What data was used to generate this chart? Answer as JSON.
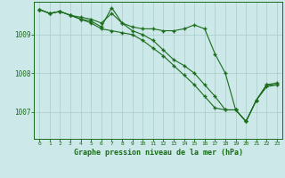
{
  "xlabel": "Graphe pression niveau de la mer (hPa)",
  "bg_color": "#cce8e8",
  "line_color": "#1a6b1a",
  "grid_color": "#aacccc",
  "axis_color": "#1a6b1a",
  "text_color": "#1a6b1a",
  "ylim": [
    1006.3,
    1009.85
  ],
  "xlim": [
    -0.5,
    23.5
  ],
  "yticks": [
    1007,
    1008,
    1009
  ],
  "xticks": [
    0,
    1,
    2,
    3,
    4,
    5,
    6,
    7,
    8,
    9,
    10,
    11,
    12,
    13,
    14,
    15,
    16,
    17,
    18,
    19,
    20,
    21,
    22,
    23
  ],
  "series1": [
    1009.65,
    1009.55,
    1009.6,
    1009.5,
    1009.45,
    1009.4,
    1009.3,
    1009.55,
    1009.3,
    1009.2,
    1009.15,
    1009.15,
    1009.1,
    1009.1,
    1009.15,
    1009.25,
    1009.15,
    1008.5,
    1008.0,
    1007.05,
    1006.75,
    1007.3,
    1007.7,
    1007.7
  ],
  "series2": [
    1009.65,
    1009.55,
    1009.6,
    1009.5,
    1009.4,
    1009.35,
    1009.2,
    1009.7,
    1009.3,
    1009.1,
    1009.0,
    1008.85,
    1008.6,
    1008.35,
    1008.2,
    1008.0,
    1007.7,
    1007.4,
    1007.05,
    1007.05,
    1006.75,
    1007.3,
    1007.7,
    1007.75
  ],
  "series3": [
    1009.65,
    1009.55,
    1009.6,
    1009.5,
    1009.4,
    1009.3,
    1009.15,
    1009.1,
    1009.05,
    1009.0,
    1008.85,
    1008.65,
    1008.45,
    1008.2,
    1007.95,
    1007.7,
    1007.4,
    1007.1,
    1007.05,
    1007.05,
    1006.75,
    1007.3,
    1007.65,
    1007.7
  ]
}
